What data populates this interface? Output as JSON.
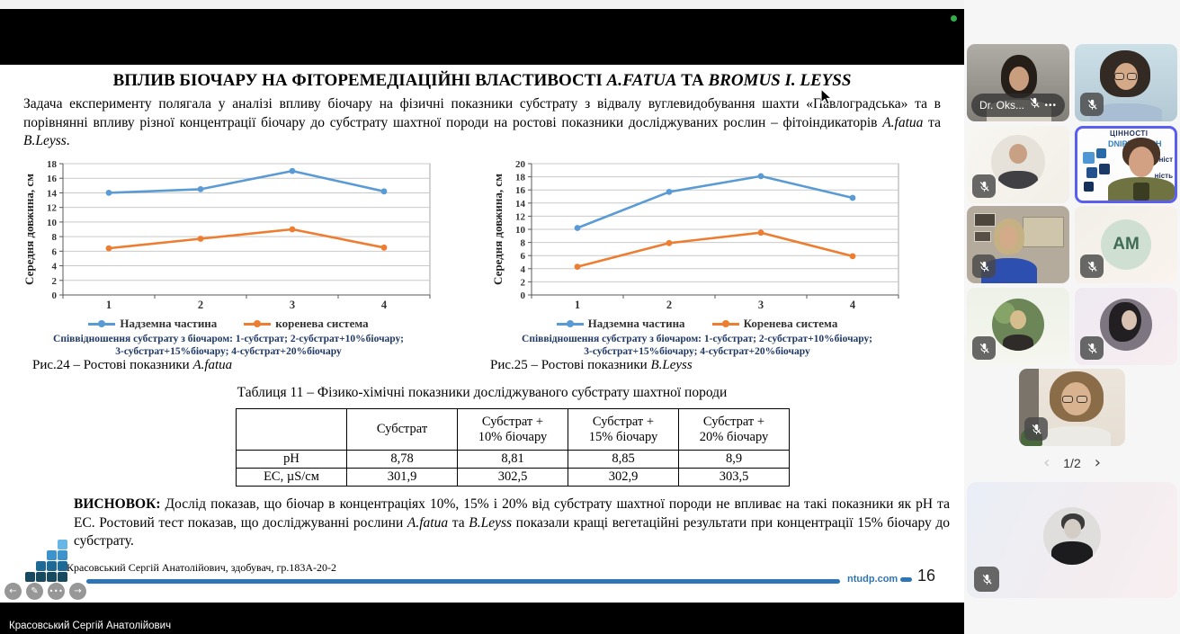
{
  "slide": {
    "title": {
      "pre": "ВПЛИВ БІОЧАРУ НА ФІТОРЕМЕДІАЦІЙНІ ВЛАСТИВОСТІ ",
      "species1": "A.FATUA",
      "mid": " ТА ",
      "species2": "BROMUS I. LEYSS"
    },
    "intro": {
      "pre": "Задача експерименту полягала у аналізі впливу біочару на фізичні показники субстрату з відвалу вуглевидобування шахти «Павлоградська» та в порівнянні впливу різної концентрації біочару до субстрату шахтної породи на ростові показники досліджуваних рослин – фітоіндикаторів ",
      "species1": "A.fatua",
      "mid": " та ",
      "species2": "B.Leyss",
      "post": "."
    },
    "table": {
      "title": "Таблиця 11 – Фізико-хімічні показники досліджуваного субстрату шахтної породи",
      "headers": [
        "",
        "Субстрат",
        "Субстрат +\n10% біочару",
        "Субстрат +\n15% біочару",
        "Субстрат +\n20% біочару"
      ],
      "rows": [
        [
          "pH",
          "8,78",
          "8,81",
          "8,85",
          "8,9"
        ],
        [
          "ЕС, µS/см",
          "301,9",
          "302,5",
          "302,9",
          "303,5"
        ]
      ]
    },
    "conclusion": {
      "label": "ВИСНОВОК:",
      "pre": " Дослід показав, що біочар в концентраціях 10%, 15% і 20% від субстрату шахтної породи не впливає на такі показники як pH та ЕС. Ростовий тест показав, що досліджуванні рослини ",
      "species1": "A.fatua",
      "mid": " та ",
      "species2": "B.Leyss",
      "post": " показали кращі вегетаційні результати при концентрації 15% біочару до субстрату."
    },
    "footer": {
      "author": "Красовський Сергій Анатолійович, здобувач, гр.183А-20-2",
      "site": "ntudp.com",
      "page": "16"
    },
    "controls": {
      "prev": "←",
      "pen": "✎",
      "more": "•••",
      "next": "→"
    }
  },
  "chart_data": [
    {
      "type": "line",
      "categories": [
        "1",
        "2",
        "3",
        "4"
      ],
      "ylabel": "Середня довжина, см",
      "ylim": [
        0,
        18
      ],
      "ytick_step": 2,
      "grid": true,
      "legend_position": "bottom",
      "series": [
        {
          "name": "Надземна частина",
          "color": "#5B9BD5",
          "values": [
            14,
            14.5,
            17,
            14.2
          ]
        },
        {
          "name": "коренева система",
          "color": "#ED7D31",
          "values": [
            6.4,
            7.7,
            9,
            6.5
          ]
        }
      ],
      "footnote_line1": "Співвідношення субстрату з біочаром: 1-субстрат; 2-субстрат+10%біочару;",
      "footnote_line2": "3-субстрат+15%біочару; 4-субстрат+20%біочару",
      "caption_prefix": "Рис.24 – Ростові показники ",
      "caption_italic": "A.fatua"
    },
    {
      "type": "line",
      "categories": [
        "1",
        "2",
        "3",
        "4"
      ],
      "ylabel": "Середня довжина, см",
      "ylim": [
        0,
        20
      ],
      "ytick_step": 2,
      "grid": true,
      "legend_position": "bottom",
      "series": [
        {
          "name": "Надземна частина",
          "color": "#5B9BD5",
          "values": [
            10.2,
            15.7,
            18.1,
            14.8
          ]
        },
        {
          "name": "Коренева система",
          "color": "#ED7D31",
          "values": [
            4.3,
            7.9,
            9.5,
            5.9
          ]
        }
      ],
      "footnote_line1": "Співвідношення субстрату з біочаром: 1-субстрат; 2-субстрат+10%біочару;",
      "footnote_line2": "3-субстрат+15%біочару; 4-субстрат+20%біочару",
      "caption_prefix": "Рис.25 – Ростові показники ",
      "caption_italic": "B.Leyss"
    }
  ],
  "meeting": {
    "bottom_bar_name": "Красовський Сергій Анатолійович",
    "pagination": {
      "prev": "‹",
      "label": "1/2",
      "next": "›"
    },
    "participants": [
      {
        "name_label": "Dr. Oks...",
        "more_icon": "•••",
        "muted": true,
        "kind": "video"
      },
      {
        "muted": true,
        "kind": "video"
      },
      {
        "muted": true,
        "kind": "photo-avatar"
      },
      {
        "active_speaker": true,
        "kind": "video",
        "poster": {
          "l1": "ЦІННОСТІ",
          "l2": "DNIPROTECH",
          "l3": "льніст",
          "l4": "ність"
        }
      },
      {
        "muted": true,
        "kind": "video"
      },
      {
        "muted": true,
        "kind": "initials-avatar",
        "initials": "AM"
      },
      {
        "muted": true,
        "kind": "photo-avatar"
      },
      {
        "muted": true,
        "kind": "photo-avatar"
      },
      {
        "muted": true,
        "kind": "video"
      },
      {
        "muted": true,
        "kind": "photo-avatar"
      }
    ]
  },
  "colors": {
    "accent_line": "#2E75B6",
    "series_blue": "#5B9BD5",
    "series_orange": "#ED7D31",
    "active_speaker_border": "#5b5ff0",
    "status_green": "#2fae4b"
  }
}
